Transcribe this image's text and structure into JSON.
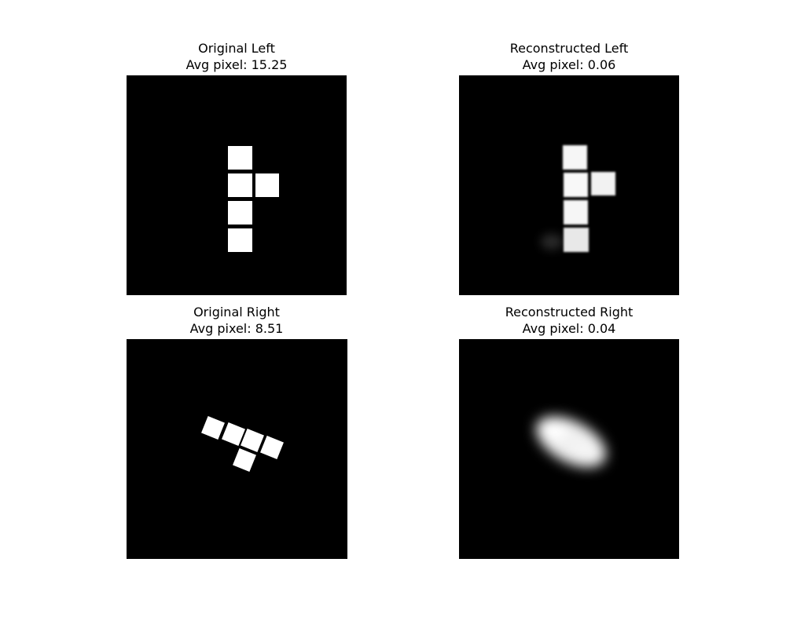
{
  "figure": {
    "panels": [
      {
        "title": "Original Left",
        "stat_label": "Avg pixel: 15.25",
        "stat_value": 15.25,
        "image_content": "white-square-blocks-upright"
      },
      {
        "title": "Reconstructed Left",
        "stat_label": "Avg pixel: 0.06",
        "stat_value": 0.06,
        "image_content": "blurred-white-square-blocks-upright"
      },
      {
        "title": "Original Right",
        "stat_label": "Avg pixel: 8.51",
        "stat_value": 8.51,
        "image_content": "white-square-blocks-rotated"
      },
      {
        "title": "Reconstructed Right",
        "stat_label": "Avg pixel: 0.04",
        "stat_value": 0.04,
        "image_content": "blurred-white-blob"
      }
    ],
    "colors": {
      "background": "#ffffff",
      "image_background": "#000000",
      "shape_fill": "#ffffff",
      "text": "#000000"
    }
  }
}
